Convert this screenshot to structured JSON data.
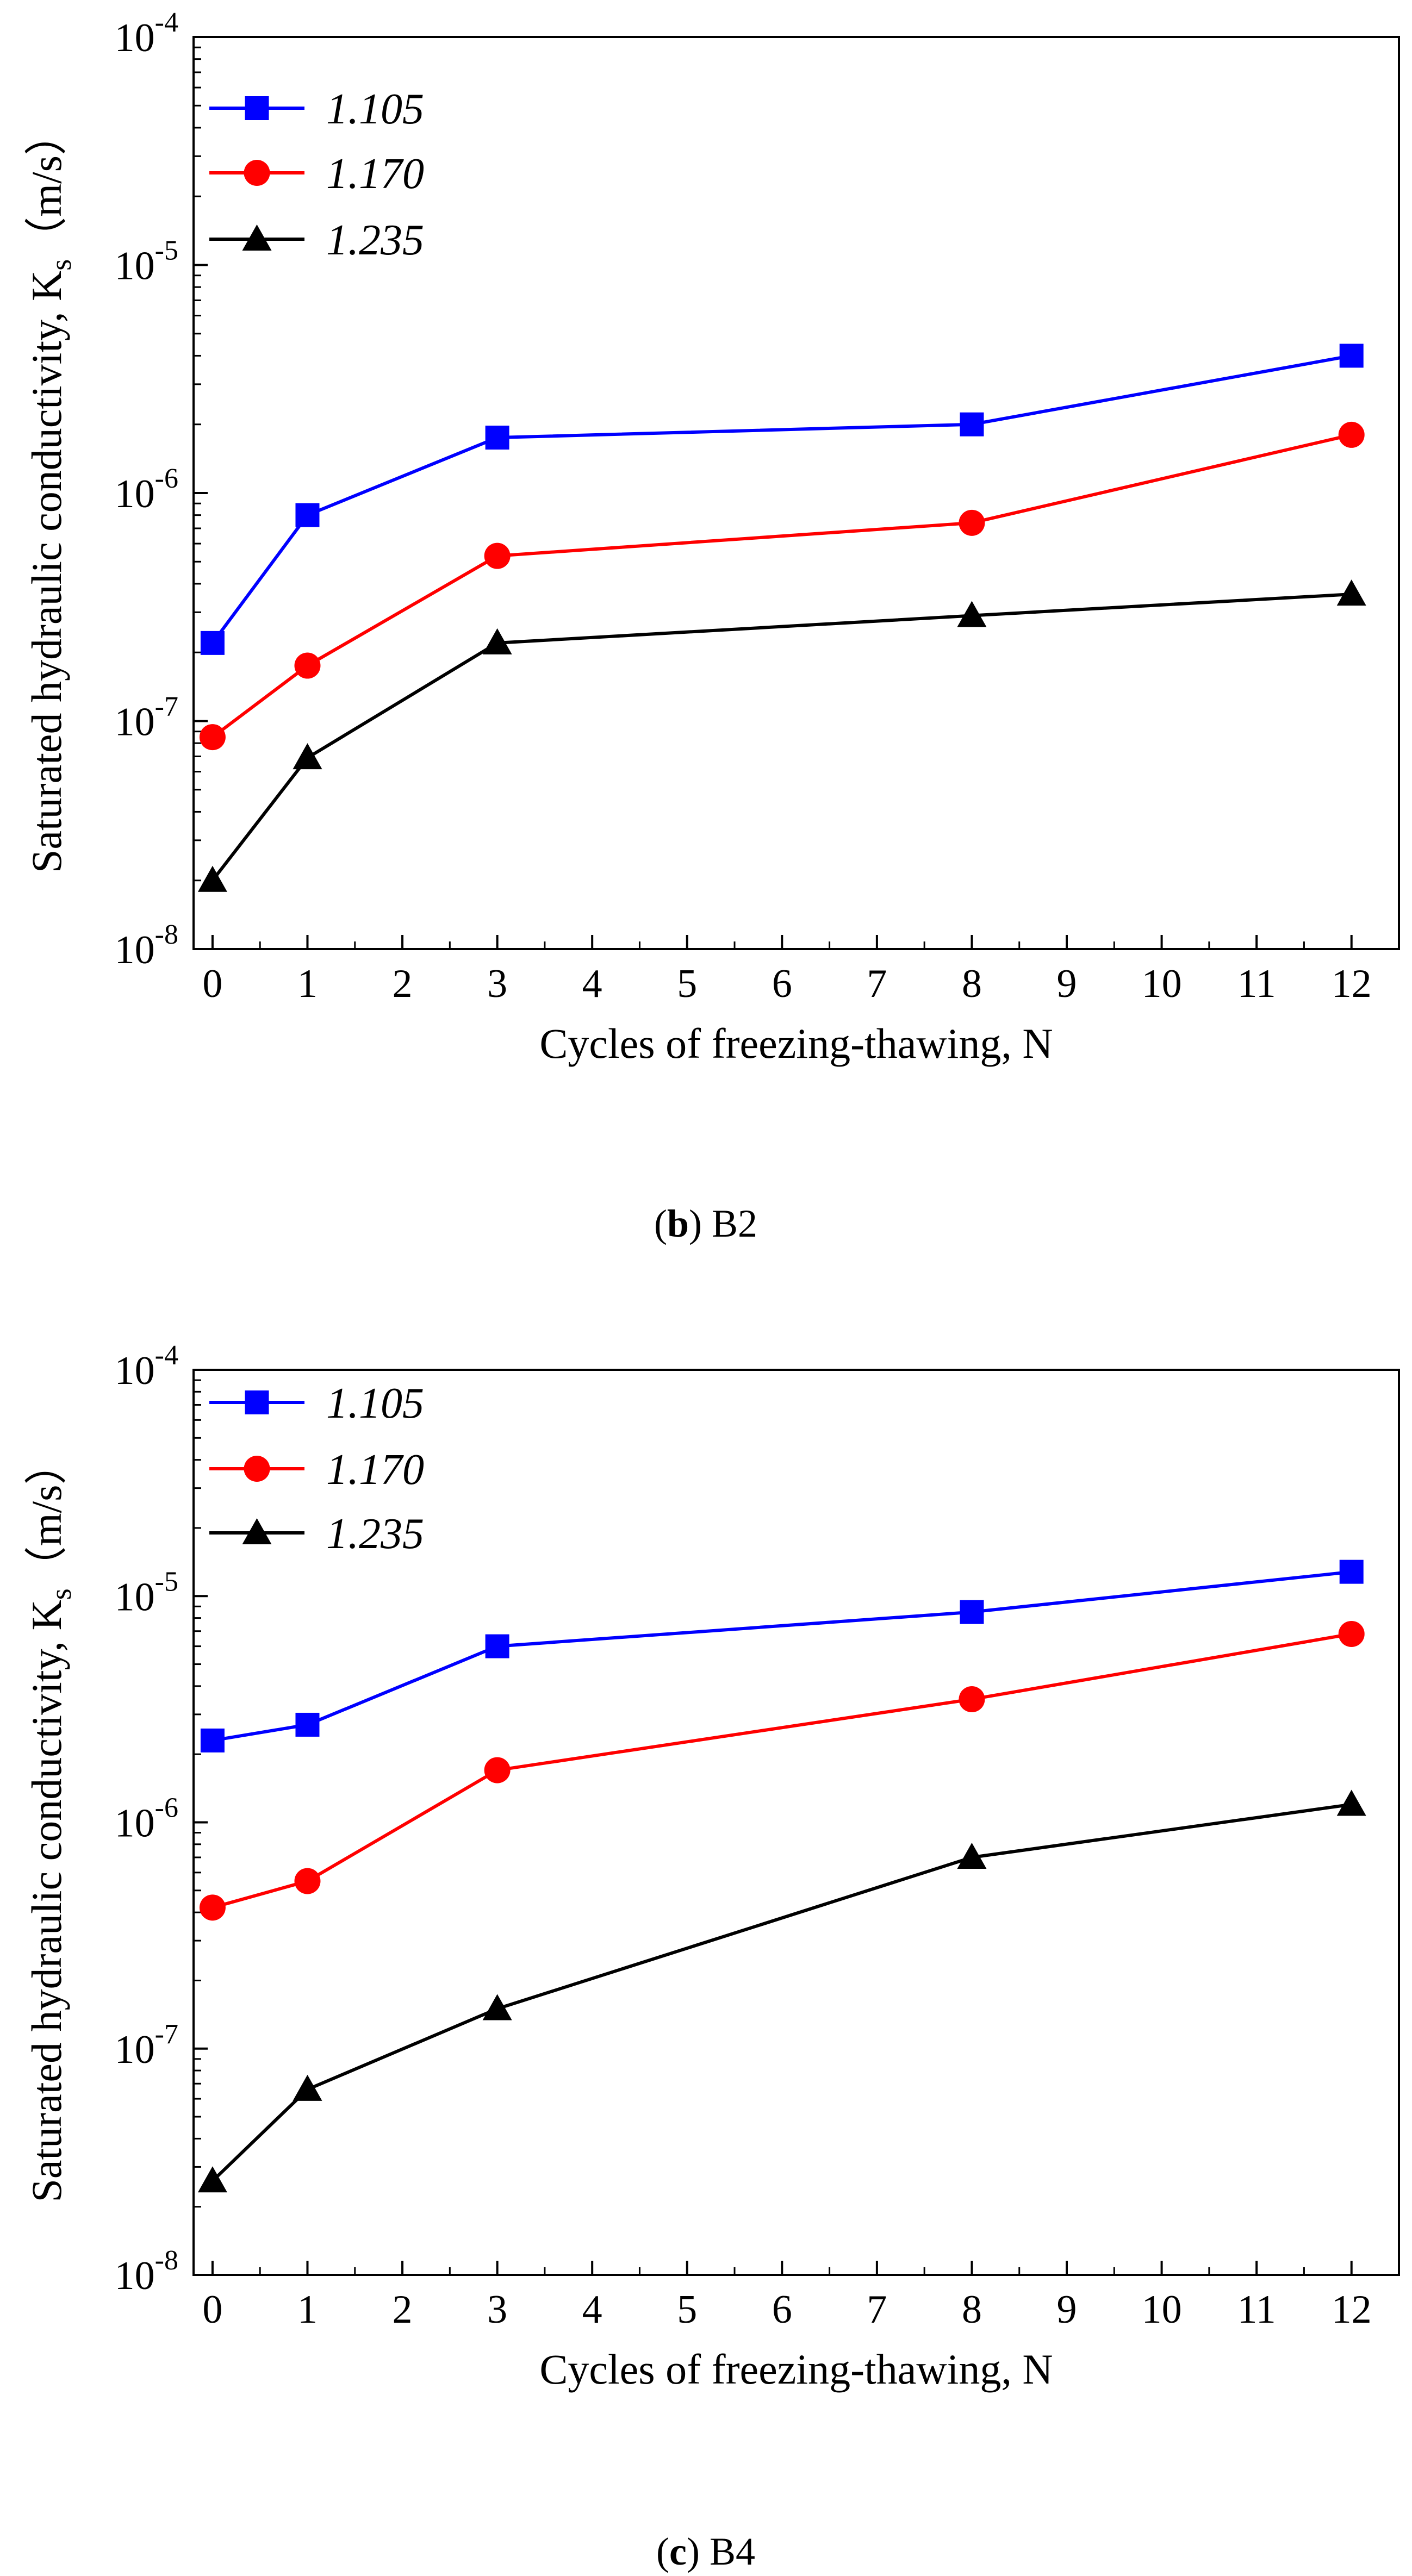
{
  "chart_data": [
    {
      "type": "line",
      "id": "b",
      "caption_letter": "b",
      "caption_text": " B2",
      "xlabel": "Cycles of freezing-thawing, N",
      "ylabel_main": "Saturated hydraulic conductivity, K",
      "ylabel_sub": "s",
      "ylabel_unit": "（m/s）",
      "xlim": [
        -0.2,
        12.5
      ],
      "ylim": [
        1e-08,
        0.0001
      ],
      "yscale": "log",
      "x_ticks": [
        0,
        1,
        2,
        3,
        4,
        5,
        6,
        7,
        8,
        9,
        10,
        11,
        12
      ],
      "y_ticks": [
        {
          "base": "10",
          "exp": "-4",
          "value": 0.0001
        },
        {
          "base": "10",
          "exp": "-5",
          "value": 1e-05
        },
        {
          "base": "10",
          "exp": "-6",
          "value": 1e-06
        },
        {
          "base": "10",
          "exp": "-7",
          "value": 1e-07
        },
        {
          "base": "10",
          "exp": "-8",
          "value": 1e-08
        }
      ],
      "x": [
        0,
        1,
        3,
        8,
        12
      ],
      "series": [
        {
          "name": "1.105",
          "color": "#0000ff",
          "marker": "square",
          "values": [
            2.2e-07,
            8e-07,
            1.75e-06,
            2e-06,
            4e-06
          ]
        },
        {
          "name": "1.170",
          "color": "#ff0000",
          "marker": "circle",
          "values": [
            8.5e-08,
            1.75e-07,
            5.3e-07,
            7.4e-07,
            1.8e-06
          ]
        },
        {
          "name": "1.235",
          "color": "#000000",
          "marker": "triangle",
          "values": [
            2e-08,
            6.9e-08,
            2.2e-07,
            2.9e-07,
            3.6e-07
          ]
        }
      ]
    },
    {
      "type": "line",
      "id": "c",
      "caption_letter": "c",
      "caption_text": " B4",
      "xlabel": "Cycles of freezing-thawing, N",
      "ylabel_main": "Saturated hydraulic conductivity, K",
      "ylabel_sub": "s",
      "ylabel_unit": "（m/s）",
      "xlim": [
        -0.2,
        12.5
      ],
      "ylim": [
        1e-08,
        0.0001
      ],
      "yscale": "log",
      "x_ticks": [
        0,
        1,
        2,
        3,
        4,
        5,
        6,
        7,
        8,
        9,
        10,
        11,
        12
      ],
      "y_ticks": [
        {
          "base": "10",
          "exp": "-4",
          "value": 0.0001
        },
        {
          "base": "10",
          "exp": "-5",
          "value": 1e-05
        },
        {
          "base": "10",
          "exp": "-6",
          "value": 1e-06
        },
        {
          "base": "10",
          "exp": "-7",
          "value": 1e-07
        },
        {
          "base": "10",
          "exp": "-8",
          "value": 1e-08
        }
      ],
      "x": [
        0,
        1,
        3,
        8,
        12
      ],
      "series": [
        {
          "name": "1.105",
          "color": "#0000ff",
          "marker": "square",
          "values": [
            2.3e-06,
            2.7e-06,
            6e-06,
            8.5e-06,
            1.28e-05
          ]
        },
        {
          "name": "1.170",
          "color": "#ff0000",
          "marker": "circle",
          "values": [
            4.2e-07,
            5.5e-07,
            1.7e-06,
            3.5e-06,
            6.8e-06
          ]
        },
        {
          "name": "1.235",
          "color": "#000000",
          "marker": "triangle",
          "values": [
            2.6e-08,
            6.6e-08,
            1.5e-07,
            7e-07,
            1.2e-06
          ]
        }
      ]
    }
  ]
}
